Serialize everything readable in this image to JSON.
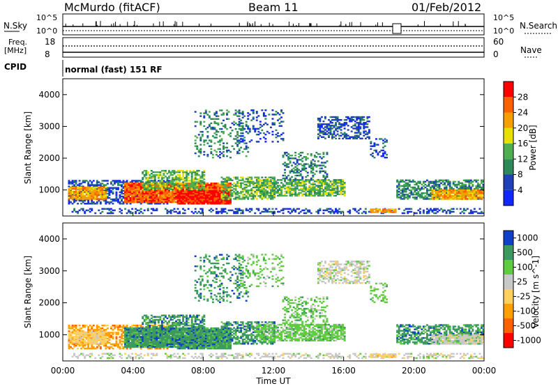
{
  "header": {
    "station": "McMurdo (fitACF)",
    "beam": "Beam 11",
    "date": "01/Feb/2012"
  },
  "panels": {
    "noise": {
      "left_label": "N.Sky",
      "right_label": "N.Search",
      "left_ticks": [
        "10^5",
        "10^0"
      ],
      "right_ticks": [
        "10^5",
        "10^0"
      ]
    },
    "freq": {
      "left_label_line1": "Freq.",
      "left_label_line2": "[MHz]",
      "right_label": "Nave",
      "left_ticks": [
        "18",
        "8"
      ],
      "right_ticks": [
        "60",
        "0"
      ]
    },
    "cpid": {
      "label": "CPID",
      "text": "normal (fast) 151 RF"
    }
  },
  "colors": {
    "power": [
      "#1028ff",
      "#2040b8",
      "#2c8a5a",
      "#4fae4f",
      "#e8e000",
      "#f5a000",
      "#ff6000",
      "#ff0000"
    ],
    "velocity": [
      "#ff0000",
      "#ff6000",
      "#ffa000",
      "#ffd060",
      "#c8c8c8",
      "#60cc40",
      "#3c9a5e",
      "#1040c8"
    ]
  },
  "chart_data": [
    {
      "type": "heatmap",
      "name": "power",
      "ylabel": "Slant Range [km]",
      "ylim": [
        180,
        4500
      ],
      "yticks": [
        1000,
        2000,
        3000,
        4000
      ],
      "xlim": [
        0,
        24
      ],
      "colorbar_label": "Power [dB]",
      "colorbar_ticks": [
        "4",
        "8",
        "12",
        "16",
        "20",
        "24",
        "28"
      ],
      "colorbar_range": [
        0,
        32
      ]
    },
    {
      "type": "heatmap",
      "name": "velocity",
      "ylabel": "Slant Range [km]",
      "ylim": [
        180,
        4500
      ],
      "yticks": [
        1000,
        2000,
        3000,
        4000
      ],
      "xlim": [
        0,
        24
      ],
      "xlabel": "Time UT",
      "xticks": [
        "00:00",
        "04:00",
        "08:00",
        "12:00",
        "16:00",
        "20:00",
        "00:00"
      ],
      "colorbar_label": "Velocity [m s^-1]",
      "colorbar_ticks": [
        "-1000",
        "-500",
        "-100",
        "-25",
        "25",
        "100",
        "500",
        "1000"
      ]
    }
  ]
}
